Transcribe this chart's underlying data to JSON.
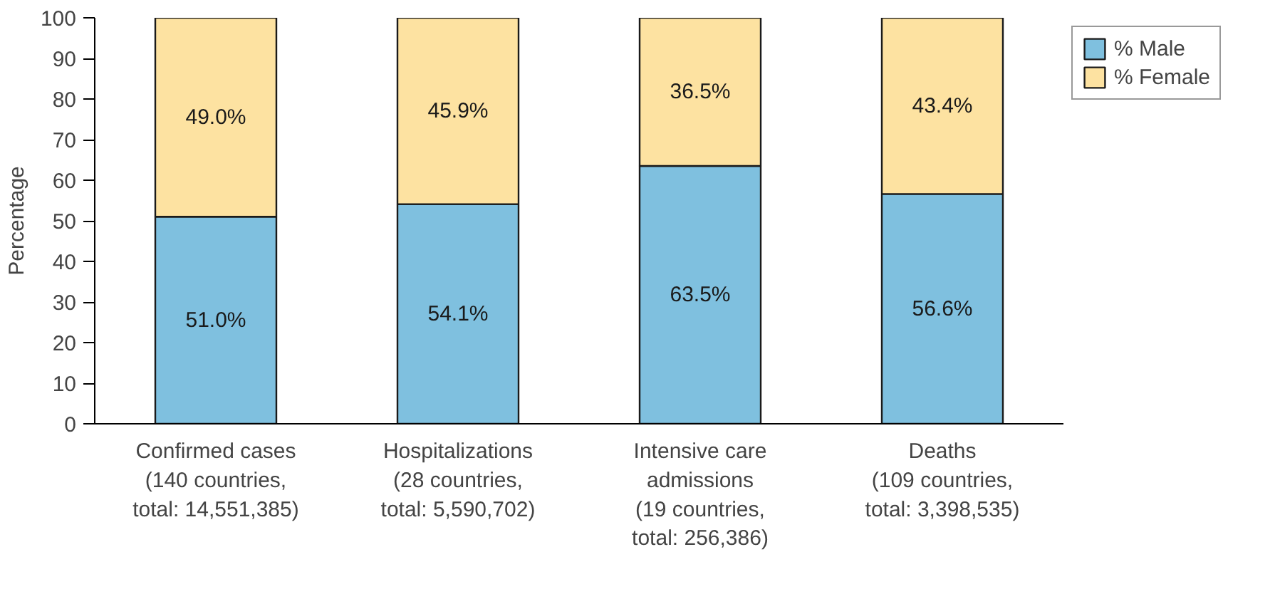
{
  "chart_data": {
    "type": "bar",
    "stacked": true,
    "ylabel": "Percentage",
    "categories": [
      "Confirmed cases\n(140 countries,\ntotal: 14,551,385)",
      "Hospitalizations\n(28 countries,\ntotal: 5,590,702)",
      "Intensive care\nadmissions\n(19 countries,\ntotal: 256,386)",
      "Deaths\n(109 countries,\ntotal: 3,398,535)"
    ],
    "series": [
      {
        "name": "% Male",
        "color": "#7fc0df",
        "values": [
          51.0,
          54.1,
          63.5,
          56.6
        ],
        "value_labels": [
          "51.0%",
          "54.1%",
          "63.5%",
          "56.6%"
        ]
      },
      {
        "name": "% Female",
        "color": "#fde2a1",
        "values": [
          49.0,
          45.9,
          36.5,
          43.4
        ],
        "value_labels": [
          "49.0%",
          "45.9%",
          "36.5%",
          "43.4%"
        ]
      }
    ],
    "ylim": [
      0,
      100
    ],
    "yticks": [
      0,
      10,
      20,
      30,
      40,
      50,
      60,
      70,
      80,
      90,
      100
    ],
    "grid": false,
    "legend": "top right"
  }
}
